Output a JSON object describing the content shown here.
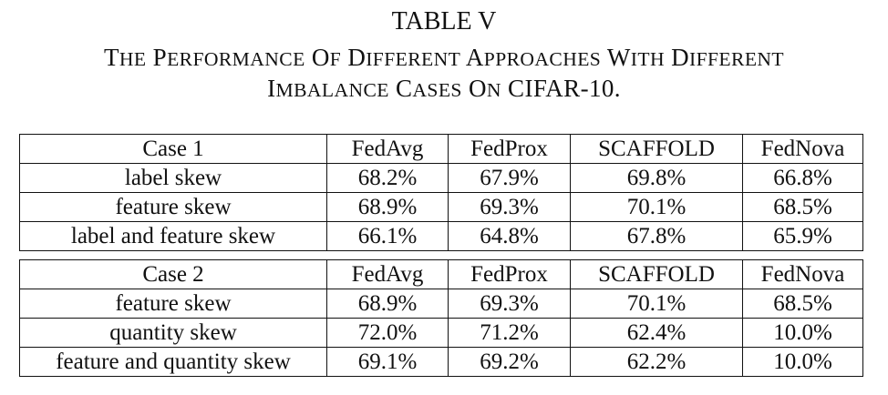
{
  "caption": {
    "label": "TABLE V",
    "line1": "The performance of different approaches with different",
    "line2_text": "imbalance cases on",
    "line2_dataset": "CIFAR-10."
  },
  "tables": [
    {
      "header": [
        "Case 1",
        "FedAvg",
        "FedProx",
        "SCAFFOLD",
        "FedNova"
      ],
      "rows": [
        [
          "label skew",
          "68.2%",
          "67.9%",
          "69.8%",
          "66.8%"
        ],
        [
          "feature skew",
          "68.9%",
          "69.3%",
          "70.1%",
          "68.5%"
        ],
        [
          "label and feature skew",
          "66.1%",
          "64.8%",
          "67.8%",
          "65.9%"
        ]
      ]
    },
    {
      "header": [
        "Case 2",
        "FedAvg",
        "FedProx",
        "SCAFFOLD",
        "FedNova"
      ],
      "rows": [
        [
          "feature skew",
          "68.9%",
          "69.3%",
          "70.1%",
          "68.5%"
        ],
        [
          "quantity skew",
          "72.0%",
          "71.2%",
          "62.4%",
          "10.0%"
        ],
        [
          "feature and quantity skew",
          "69.1%",
          "69.2%",
          "62.2%",
          "10.0%"
        ]
      ]
    }
  ]
}
